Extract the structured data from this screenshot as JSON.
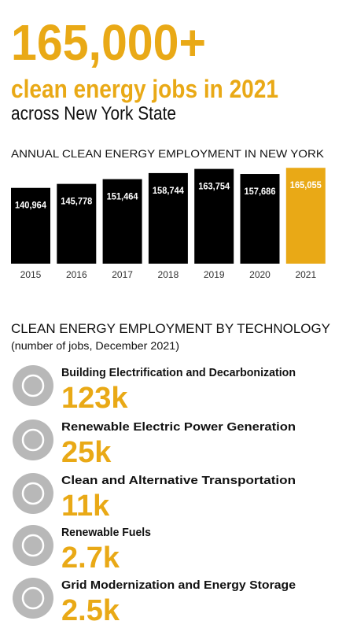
{
  "header": {
    "headline": "165,000+",
    "subhead": "clean energy jobs in 2021",
    "tagline": "across New York State"
  },
  "chart_data": {
    "type": "bar",
    "title": "ANNUAL CLEAN ENERGY EMPLOYMENT IN NEW YORK",
    "categories": [
      "2015",
      "2016",
      "2017",
      "2018",
      "2019",
      "2020",
      "2021"
    ],
    "values": [
      140964,
      145778,
      151464,
      158744,
      163754,
      157686,
      165055
    ],
    "value_labels": [
      "140,964",
      "145,778",
      "151,464",
      "158,744",
      "163,754",
      "157,686",
      "165,055"
    ],
    "colors": [
      "#000000",
      "#000000",
      "#000000",
      "#000000",
      "#000000",
      "#000000",
      "#e9a916"
    ],
    "ylim": [
      50000,
      170000
    ]
  },
  "technology": {
    "title": "CLEAN ENERGY EMPLOYMENT BY TECHNOLOGY",
    "subtitle": "(number of jobs, December 2021)",
    "items": [
      {
        "name": "Building Electrification and Decarbonization",
        "value": "123k"
      },
      {
        "name": "Renewable Electric Power Generation",
        "value": "25k"
      },
      {
        "name": "Clean and Alternative Transportation",
        "value": "11k"
      },
      {
        "name": "Renewable Fuels",
        "value": "2.7k"
      },
      {
        "name": "Grid Modernization and Energy Storage",
        "value": "2.5k"
      }
    ]
  }
}
